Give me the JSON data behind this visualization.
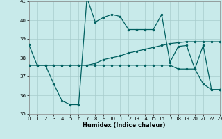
{
  "xlabel": "Humidex (Indice chaleur)",
  "bg_color": "#c8eaea",
  "grid_color": "#a8cccc",
  "line_color": "#006060",
  "xlim": [
    0,
    23
  ],
  "ylim": [
    35,
    41
  ],
  "xticks": [
    0,
    1,
    2,
    3,
    4,
    5,
    6,
    7,
    8,
    9,
    10,
    11,
    12,
    13,
    14,
    15,
    16,
    17,
    18,
    19,
    20,
    21,
    22,
    23
  ],
  "yticks": [
    35,
    36,
    37,
    38,
    39,
    40,
    41
  ],
  "curves": [
    [
      38.7,
      37.6,
      37.6,
      36.6,
      35.7,
      35.5,
      35.5,
      41.2,
      39.9,
      40.15,
      40.3,
      40.2,
      39.5,
      39.5,
      39.5,
      39.5,
      40.3,
      37.75,
      38.6,
      38.65,
      37.4,
      38.65,
      36.3,
      36.3
    ],
    [
      37.6,
      37.6,
      37.6,
      37.6,
      37.6,
      37.6,
      37.6,
      37.6,
      37.7,
      37.9,
      38.0,
      38.1,
      38.25,
      38.35,
      38.45,
      38.55,
      38.65,
      38.75,
      38.8,
      38.85,
      38.85,
      38.85,
      38.85,
      38.85
    ],
    [
      37.6,
      37.6,
      37.6,
      37.6,
      37.6,
      37.6,
      37.6,
      37.6,
      37.6,
      37.6,
      37.6,
      37.6,
      37.6,
      37.6,
      37.6,
      37.6,
      37.6,
      37.6,
      37.4,
      37.4,
      37.4,
      36.6,
      36.3,
      36.3
    ]
  ]
}
